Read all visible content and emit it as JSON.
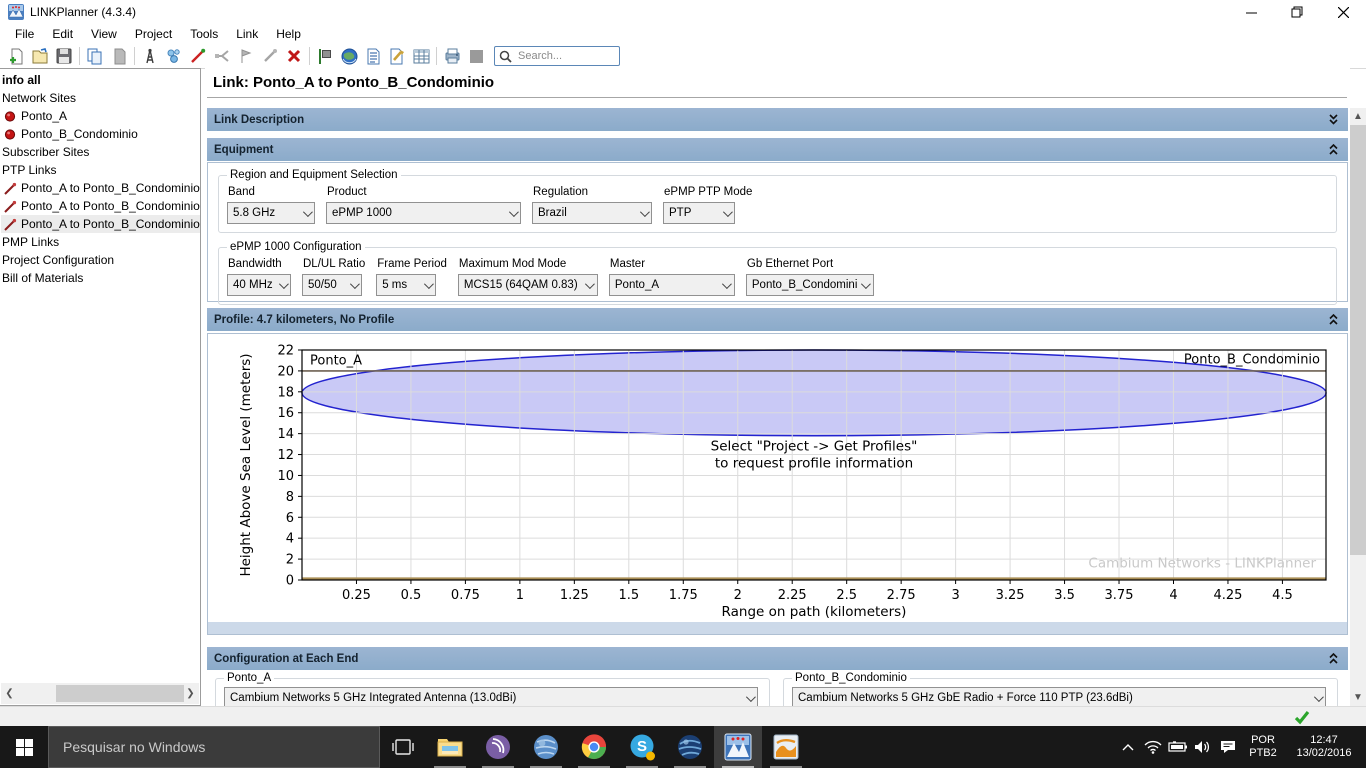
{
  "window": {
    "title": "LINKPlanner (4.3.4)"
  },
  "menu": {
    "items": [
      "File",
      "Edit",
      "View",
      "Project",
      "Tools",
      "Link",
      "Help"
    ]
  },
  "toolbar": {
    "search_placeholder": "Search...",
    "icons": [
      "new-project",
      "open-project",
      "save-project",
      "copy",
      "paste",
      "new-network-site",
      "new-subscriber-site",
      "new-ptp-link",
      "new-pmp-link",
      "new-hub",
      "attach-profile",
      "delete",
      "flag-report",
      "google-earth",
      "report",
      "bom-tools",
      "table",
      "print",
      "placeholder"
    ]
  },
  "sidebar": {
    "items": [
      {
        "label": "info all"
      },
      {
        "label": "Network Sites"
      },
      {
        "label": "Ponto_A"
      },
      {
        "label": "Ponto_B_Condominio"
      },
      {
        "label": "Subscriber Sites"
      },
      {
        "label": "PTP Links"
      },
      {
        "label": "Ponto_A to Ponto_B_Condominio"
      },
      {
        "label": "Ponto_A to Ponto_B_Condominio"
      },
      {
        "label": "Ponto_A to Ponto_B_Condominio"
      },
      {
        "label": "PMP Links"
      },
      {
        "label": "Project Configuration"
      },
      {
        "label": "Bill of Materials"
      }
    ]
  },
  "main": {
    "page_title": "Link: Ponto_A to Ponto_B_Condominio",
    "link_description": {
      "title": "Link Description"
    },
    "equipment": {
      "title": "Equipment",
      "region_group": {
        "legend": "Region and Equipment Selection",
        "fields": [
          {
            "label": "Band",
            "value": "5.8 GHz"
          },
          {
            "label": "Product",
            "value": "ePMP 1000"
          },
          {
            "label": "Regulation",
            "value": "Brazil"
          },
          {
            "label": "ePMP PTP Mode",
            "value": "PTP"
          }
        ]
      },
      "config_group": {
        "legend": "ePMP 1000 Configuration",
        "fields": [
          {
            "label": "Bandwidth",
            "value": "40 MHz"
          },
          {
            "label": "DL/UL Ratio",
            "value": "50/50"
          },
          {
            "label": "Frame Period",
            "value": "5 ms"
          },
          {
            "label": "Maximum Mod Mode",
            "value": "MCS15 (64QAM 0.83)"
          },
          {
            "label": "Master",
            "value": "Ponto_A"
          },
          {
            "label": "Gb Ethernet Port",
            "value": "Ponto_B_Condominio"
          }
        ]
      }
    },
    "profile": {
      "title": "Profile: 4.7 kilometers, No Profile"
    },
    "config_each_end": {
      "title": "Configuration at Each End",
      "ends": [
        {
          "legend": "Ponto_A",
          "value": "Cambium Networks 5 GHz Integrated Antenna (13.0dBi)"
        },
        {
          "legend": "Ponto_B_Condominio",
          "value": "Cambium Networks 5 GHz GbE Radio + Force 110 PTP (23.6dBi)"
        }
      ]
    }
  },
  "chart_data": {
    "type": "area",
    "title": "Profile: 4.7 kilometers, No Profile",
    "xlabel": "Range on path (kilometers)",
    "ylabel": "Height Above Sea Level (meters)",
    "xlim": [
      0,
      4.7
    ],
    "ylim": [
      0,
      22
    ],
    "xticks": [
      0.25,
      0.5,
      0.75,
      1,
      1.25,
      1.5,
      1.75,
      2,
      2.25,
      2.5,
      2.75,
      3,
      3.25,
      3.5,
      3.75,
      4,
      4.25,
      4.5
    ],
    "yticks": [
      0,
      2,
      4,
      6,
      8,
      10,
      12,
      14,
      16,
      18,
      20,
      22
    ],
    "grid": true,
    "link_line_y_m": 20,
    "fresnel_ellipse": {
      "x_center_km": 2.35,
      "y_center_m": 17.9,
      "rx_km": 2.35,
      "ry_m": 4.1
    },
    "end_labels": [
      "Ponto_A",
      "Ponto_B_Condominio"
    ],
    "annotation_lines": [
      "Select \"Project -> Get Profiles\"",
      "to request profile information"
    ],
    "watermark": "Cambium Networks - LINKPlanner",
    "colors": {
      "fill": "#c9c9f6",
      "stroke": "#2323cf",
      "link_line": "#6f6253",
      "ground": "#a98e55",
      "grid": "#dcdcdc",
      "watermark": "#c9c9c9"
    }
  },
  "taskbar": {
    "search_placeholder": "Pesquisar no Windows",
    "apps": [
      "file-explorer",
      "bittorrent",
      "web-browser-globe",
      "chrome",
      "skype",
      "google-earth",
      "linkplanner",
      "image-map-editor"
    ],
    "tray": {
      "lang_line1": "POR",
      "lang_line2": "PTB2",
      "time": "12:47",
      "date": "13/02/2016"
    }
  },
  "colors": {
    "section_header": "#92aecd",
    "taskbar": "#181818",
    "status_ok": "#2ba52b"
  }
}
